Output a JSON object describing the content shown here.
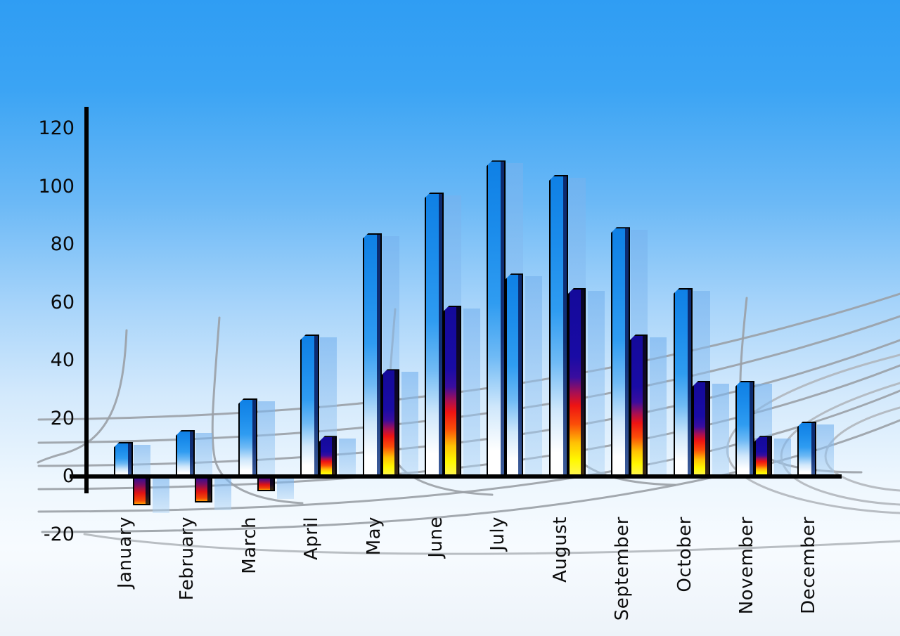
{
  "chart_data": {
    "type": "bar",
    "title": "",
    "xlabel": "",
    "ylabel": "",
    "categories": [
      "January",
      "February",
      "March",
      "April",
      "May",
      "June",
      "July",
      "August",
      "September",
      "October",
      "November",
      "December"
    ],
    "series": [
      {
        "name": "Series 1 (blue gradient bars)",
        "style": "blue-gradient",
        "values": [
          12,
          16,
          27,
          49,
          84,
          98,
          109,
          104,
          86,
          65,
          33,
          19
        ]
      },
      {
        "name": "Series 2 (rainbow bars)",
        "style": "rainbow",
        "values": [
          -10,
          -9,
          -5,
          14,
          37,
          59,
          70,
          65,
          49,
          33,
          14,
          null
        ],
        "point_styles": [
          "rainbow-negative",
          "rainbow-negative",
          "rainbow-negative",
          "rainbow",
          "rainbow",
          "rainbow",
          "blue-gradient",
          "rainbow",
          "rainbow",
          "rainbow",
          "rainbow",
          null
        ]
      }
    ],
    "y_ticks": [
      120,
      100,
      80,
      60,
      40,
      20,
      0,
      -20
    ],
    "y_tick_labels": [
      "120",
      "100",
      "80",
      "60",
      "40",
      "20",
      "0",
      "-20"
    ],
    "ylim": [
      -20,
      120
    ],
    "legend_position": "none",
    "grid": "curved gray perspective grid behind bars",
    "notes": "Each bar has a translucent light-blue drop-shadow copy offset to the right; January-March series-2 bars are negative (below axis); December has no series-2 bar."
  },
  "colors": {
    "background_top": "#2f9df3",
    "background_bottom": "#edf3f9",
    "axis": "#000000",
    "label_text": "#0d0d0d",
    "grid_line": "#9aa0a6",
    "grid_line_light": "#aeb3b8",
    "bar_blue_top": "#0f80e5",
    "bar_blue_bottom": "#ffffff",
    "bar_rainbow_stops": [
      "#140a9a",
      "#ee1313",
      "#fb4e08",
      "#fff800"
    ],
    "bar_shadow": "rgba(118,178,238,0.62)"
  }
}
